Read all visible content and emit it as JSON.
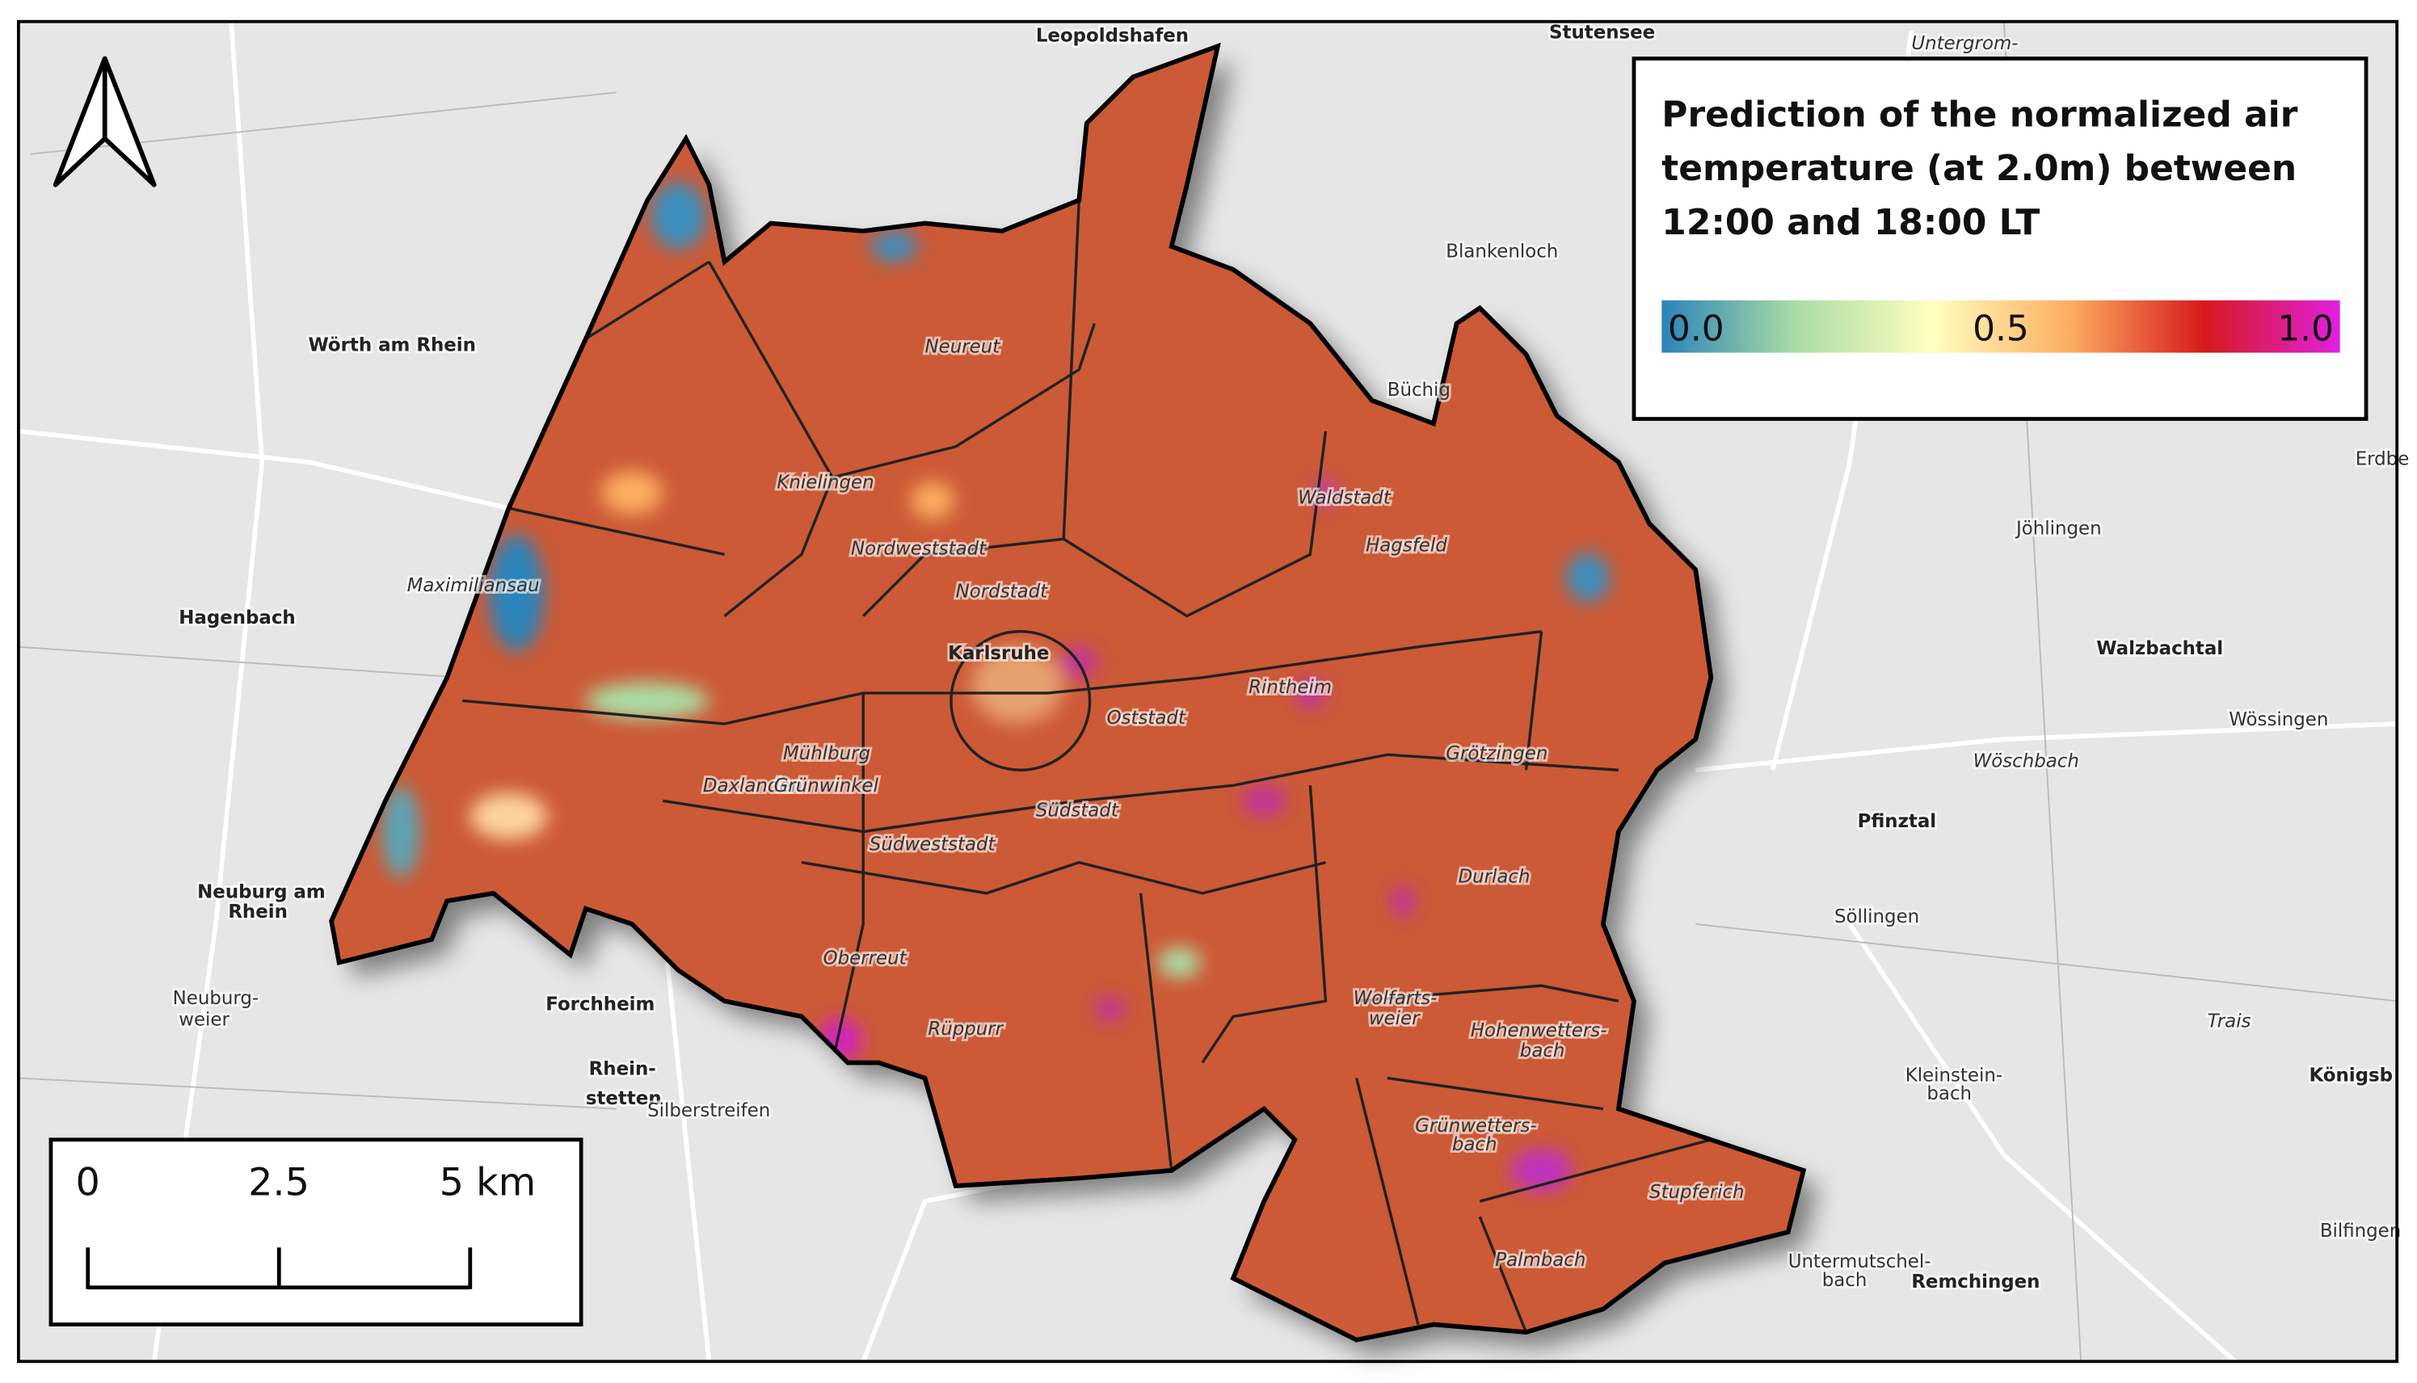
{
  "map": {
    "legend": {
      "title": [
        "Prediction of the normalized air",
        "temperature (at 2.0m) between",
        "12:00 and 18:00 LT"
      ],
      "colorbar": {
        "colors": [
          "#2b83ba",
          "#abdda4",
          "#ffffbf",
          "#fdae61",
          "#d7191c",
          "#e020e0"
        ],
        "ticks": [
          {
            "value": 0,
            "label": "0.0"
          },
          {
            "value": 0.5,
            "label": "0.5"
          },
          {
            "value": 1,
            "label": "1.0"
          }
        ]
      }
    },
    "scalebar": {
      "ticks": [
        0,
        2.5,
        {
          "value": 5,
          "label": "5 km"
        }
      ]
    },
    "labels": [
      "Leopoldshafen",
      "Stutensee",
      "Wörth am Rhein",
      "Hagenbach",
      "Neuburg am",
      "Rhein",
      "Forchheim",
      "Rhein-",
      "stetten",
      "Karlsruhe",
      "Neureut",
      "Knielingen",
      "Maximiliansau",
      "Waldstadt",
      "Hagsfeld",
      "Grötzingen",
      "Durlach",
      "Mühlburg",
      "Daxlanden",
      "Grünwinkel",
      "Oberreut",
      "Rüppurr",
      "Hohenwetters-",
      "bach",
      "Grünwetters-",
      "bach",
      "Stupferich",
      "Palmbach",
      "Pfinztal",
      "Söllingen",
      "Walzbachtal",
      "Wössingen",
      "Jöhlingen",
      "Remchingen",
      "Blankenloch",
      "Büchig",
      "Südweststadt",
      "Südstadt",
      "Oststadt",
      "Nordweststadt",
      "Nordstadt",
      "Wolfarts-",
      "weier",
      "Rintheim",
      "Königsb",
      "Kleinstein-",
      "bach",
      "Silberstreifen",
      "Neuburg-",
      "weier",
      "Untermutschel-",
      "bach",
      "Bilfingen",
      "Erdbe",
      "Trais",
      "Untergrom-",
      "Wöschbach"
    ]
  }
}
